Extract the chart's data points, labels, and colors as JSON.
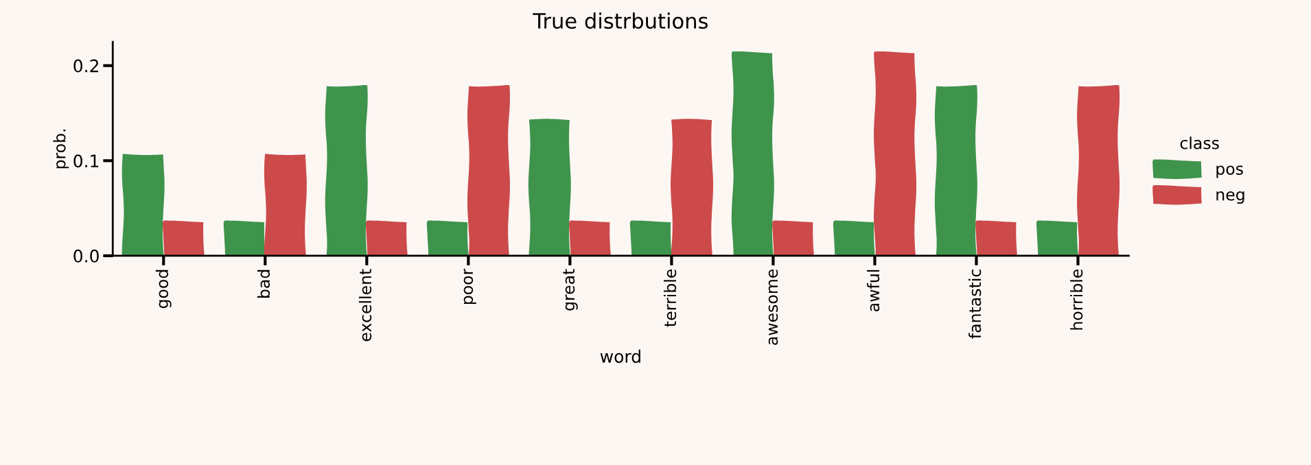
{
  "chart_data": {
    "type": "bar",
    "title": "True distrbutions",
    "xlabel": "word",
    "ylabel": "prob.",
    "legend_title": "class",
    "categories": [
      "good",
      "bad",
      "excellent",
      "poor",
      "great",
      "terrible",
      "awesome",
      "awful",
      "fantastic",
      "horrible"
    ],
    "series": [
      {
        "name": "pos",
        "color": "#3f944c",
        "values": [
          0.107,
          0.036,
          0.179,
          0.036,
          0.143,
          0.036,
          0.214,
          0.036,
          0.179,
          0.036
        ]
      },
      {
        "name": "neg",
        "color": "#cc4a4a",
        "values": [
          0.036,
          0.107,
          0.036,
          0.179,
          0.036,
          0.143,
          0.036,
          0.214,
          0.036,
          0.179
        ]
      }
    ],
    "ylim": [
      0,
      0.225
    ],
    "yticks": [
      {
        "value": 0,
        "label": "0.0"
      },
      0.1,
      0.2
    ],
    "legend": "right"
  }
}
